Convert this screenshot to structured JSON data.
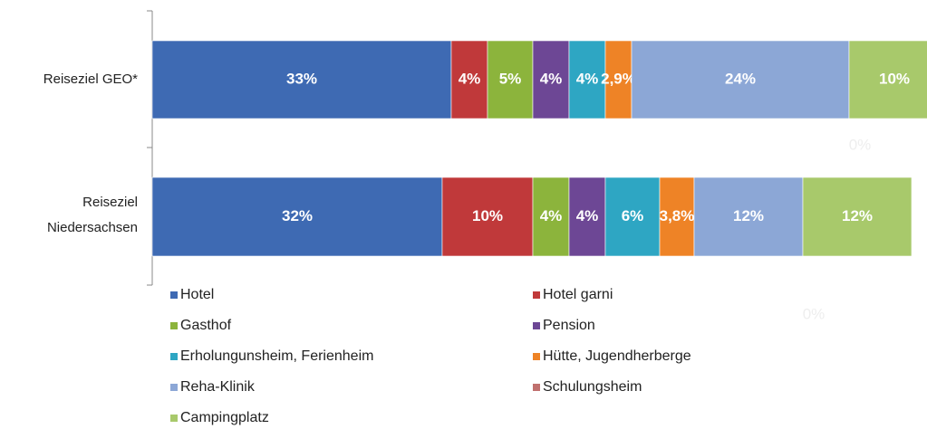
{
  "chart_data": {
    "type": "bar",
    "orientation": "horizontal",
    "stacked": true,
    "categories": [
      "Reiseziel GEO*",
      "Reiseziel Niedersachsen"
    ],
    "xlim": [
      0,
      85.5
    ],
    "series": [
      {
        "name": "Hotel",
        "color": "#3e6ab3",
        "values": [
          33,
          32
        ],
        "value_labels": [
          "33%",
          "32%"
        ]
      },
      {
        "name": "Hotel garni",
        "color": "#c0393a",
        "values": [
          4,
          10
        ],
        "value_labels": [
          "4%",
          "10%"
        ]
      },
      {
        "name": "Gasthof",
        "color": "#8cb43c",
        "values": [
          5,
          4
        ],
        "value_labels": [
          "5%",
          "4%"
        ]
      },
      {
        "name": "Pension",
        "color": "#6d4795",
        "values": [
          4,
          4
        ],
        "value_labels": [
          "4%",
          "4%"
        ]
      },
      {
        "name": "Erholungunsheim, Ferienheim",
        "color": "#2ea6c3",
        "values": [
          4,
          6
        ],
        "value_labels": [
          "4%",
          "6%"
        ]
      },
      {
        "name": "Hütte, Jugendherberge",
        "color": "#ee8326",
        "values": [
          2.9,
          3.8
        ],
        "value_labels": [
          "2,9%",
          "3,8%"
        ]
      },
      {
        "name": "Reha-Klinik",
        "color": "#8ca7d6",
        "values": [
          24,
          12
        ],
        "value_labels": [
          "24%",
          "12%"
        ]
      },
      {
        "name": "Schulungsheim",
        "color": "#c0706e",
        "values": [
          0,
          0
        ],
        "value_labels": [
          "0%",
          "0%"
        ]
      },
      {
        "name": "Campingplatz",
        "color": "#a8c96b",
        "values": [
          10,
          12
        ],
        "value_labels": [
          "10%",
          "12%"
        ]
      }
    ]
  }
}
